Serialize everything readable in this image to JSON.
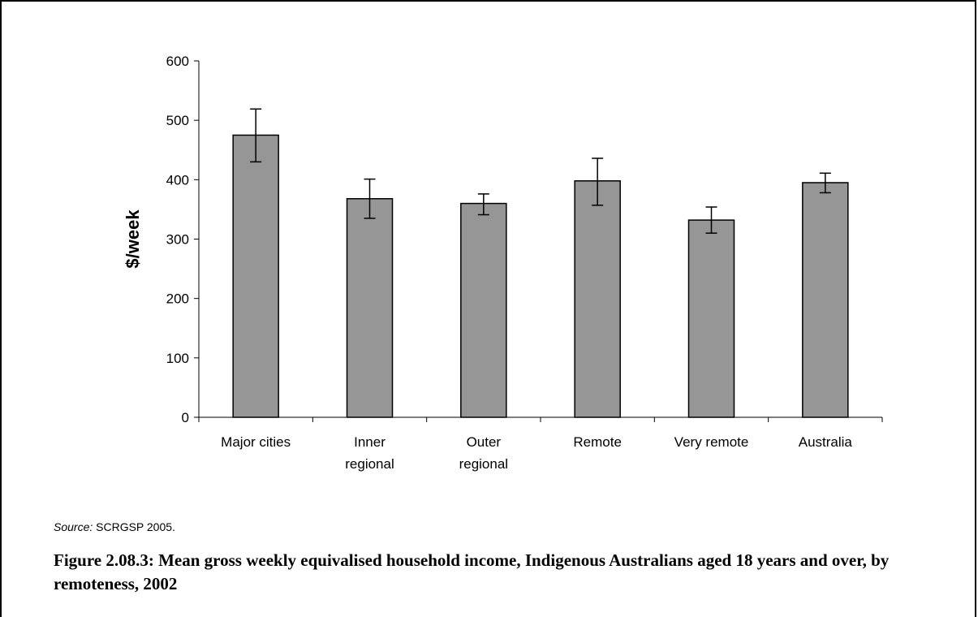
{
  "chart_data": {
    "type": "bar",
    "categories": [
      [
        "Major cities"
      ],
      [
        "Inner",
        "regional"
      ],
      [
        "Outer",
        "regional"
      ],
      [
        "Remote"
      ],
      [
        "Very remote"
      ],
      [
        "Australia"
      ]
    ],
    "values": [
      475,
      368,
      360,
      398,
      332,
      395
    ],
    "error_low": [
      430,
      335,
      341,
      357,
      310,
      378
    ],
    "error_high": [
      519,
      401,
      376,
      436,
      354,
      411
    ],
    "ylabel": "$/week",
    "xlabel": "",
    "ylim": [
      0,
      600
    ],
    "yticks": [
      0,
      100,
      200,
      300,
      400,
      500,
      600
    ],
    "bar_color": "#969696",
    "grid": false
  },
  "source": {
    "label": "Source:",
    "text": " SCRGSP 2005."
  },
  "caption": "Figure 2.08.3: Mean gross weekly equivalised household income, Indigenous Australians aged 18 years and over, by remoteness, 2002"
}
